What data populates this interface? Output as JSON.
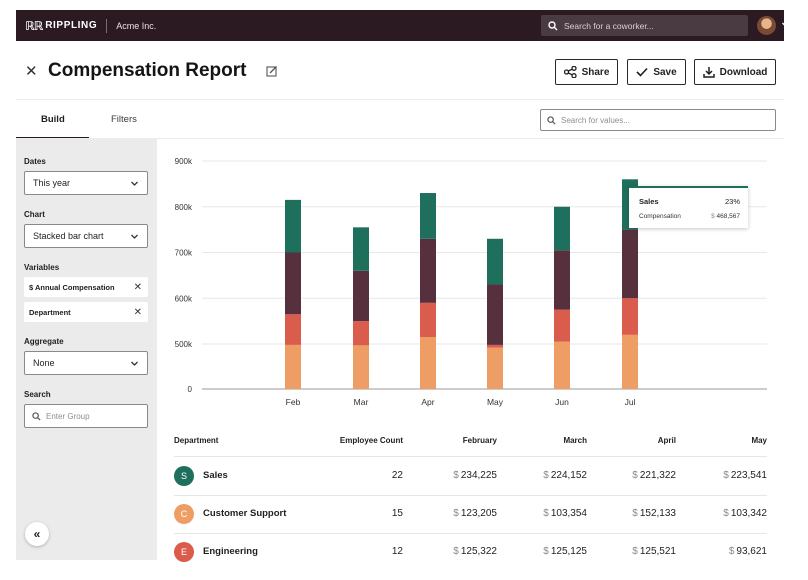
{
  "app": {
    "brand_mark": "ℝℝ",
    "brand": "RIPPLING",
    "company": "Acme Inc."
  },
  "top_search": {
    "placeholder": "Search for a coworker..."
  },
  "header": {
    "title": "Compensation Report",
    "share_label": "Share",
    "save_label": "Save",
    "download_label": "Download"
  },
  "tabs": [
    {
      "label": "Build",
      "active": true
    },
    {
      "label": "Filters",
      "active": false
    }
  ],
  "value_search": {
    "placeholder": "Search for values..."
  },
  "sidebar": {
    "dates_label": "Dates",
    "dates_value": "This year",
    "chart_label": "Chart",
    "chart_value": "Stacked bar chart",
    "variables_label": "Variables",
    "variables": [
      "$ Annual Compensation",
      "Department"
    ],
    "aggregate_label": "Aggregate",
    "aggregate_value": "None",
    "search_label": "Search",
    "search_placeholder": "Enter Group"
  },
  "colors": {
    "sales": "#1e6f5c",
    "customer_support": "#ee9e64",
    "engineering": "#d95c4d",
    "other": "#56303c",
    "topbar": "#2b1a22"
  },
  "chart_data": {
    "type": "bar",
    "stacked": true,
    "categories": [
      "Feb",
      "Mar",
      "Apr",
      "May",
      "Jun",
      "Jul"
    ],
    "y_ticks": [
      "0",
      "500k",
      "600k",
      "700k",
      "800k",
      "900k"
    ],
    "series": [
      {
        "color": "#ee9e64",
        "values": [
          490000,
          485000,
          515000,
          460000,
          505000,
          520000
        ]
      },
      {
        "color": "#d95c4d",
        "values": [
          565000,
          550000,
          590000,
          490000,
          575000,
          600000
        ]
      },
      {
        "color": "#56303c",
        "values": [
          700000,
          660000,
          730000,
          630000,
          705000,
          750000
        ]
      },
      {
        "color": "#1e6f5c",
        "values": [
          815000,
          755000,
          830000,
          730000,
          800000,
          860000
        ]
      }
    ],
    "note": "values are cumulative stack tops read off the axis",
    "grid": true
  },
  "tooltip": {
    "name": "Sales",
    "pct": "23%",
    "metric": "Compensation",
    "currency": "$",
    "amount": "468,567"
  },
  "table": {
    "headers": [
      "Department",
      "Employee Count",
      "February",
      "March",
      "April",
      "May"
    ],
    "rows": [
      {
        "initial": "S",
        "color": "#1e6f5c",
        "name": "Sales",
        "count": "22",
        "values": [
          "234,225",
          "224,152",
          "221,322",
          "223,541"
        ]
      },
      {
        "initial": "C",
        "color": "#ee9e64",
        "name": "Customer Support",
        "count": "15",
        "values": [
          "123,205",
          "103,354",
          "152,133",
          "103,342"
        ]
      },
      {
        "initial": "E",
        "color": "#d95c4d",
        "name": "Engineering",
        "count": "12",
        "values": [
          "125,322",
          "125,125",
          "125,521",
          "93,621"
        ]
      }
    ],
    "currency": "$"
  }
}
